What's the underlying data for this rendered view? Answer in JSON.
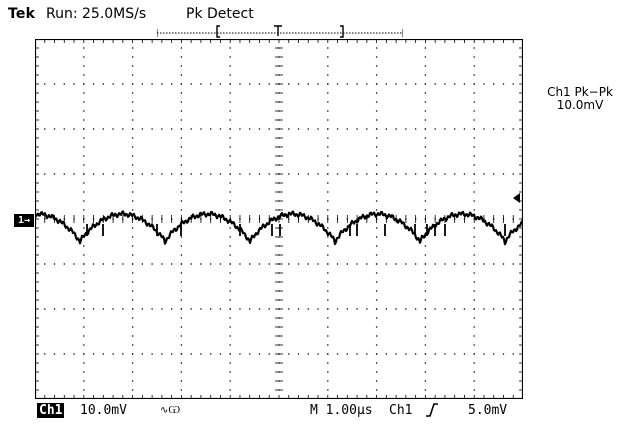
{
  "header": {
    "brand": "Tek",
    "run_status": "Run: 25.0MS/s",
    "acq_mode": "Pk Detect"
  },
  "measurement": {
    "label": "Ch1 Pk−Pk",
    "value": "10.0mV"
  },
  "channel_marker": "1→",
  "footer": {
    "channel": "Ch1",
    "volts_per_div": "10.0mV",
    "coupling_symbol": "∿Ѡ",
    "timebase": "M 1.00µs",
    "trigger_source": "Ch1",
    "trigger_slope_icon": "rising-edge-icon",
    "trigger_level": "5.0mV"
  },
  "display": {
    "graticule_divisions": [
      10,
      8
    ],
    "trace_color": "#000000",
    "grid_color": "#000000"
  }
}
